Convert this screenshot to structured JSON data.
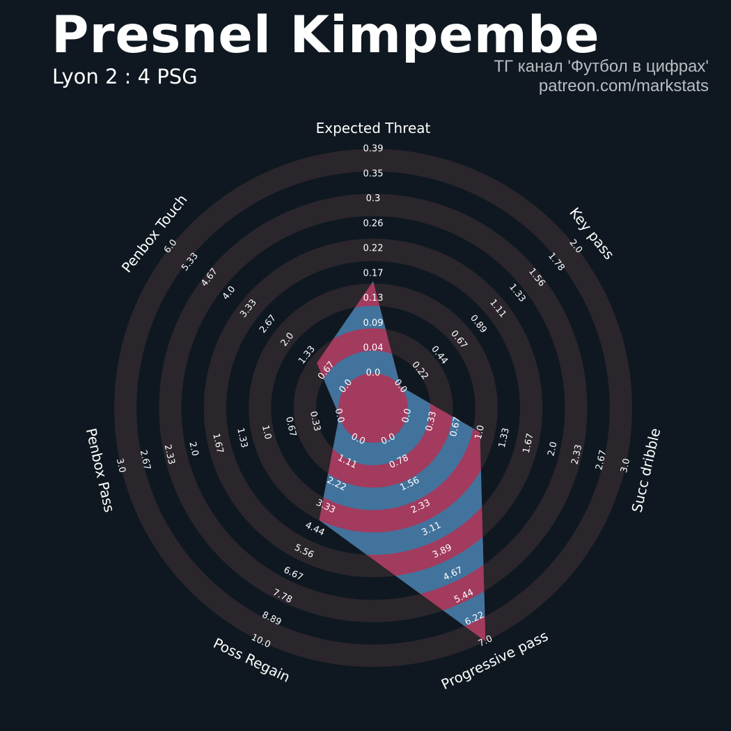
{
  "header": {
    "title": "Presnel Kimpembe",
    "subtitle": "Lyon 2 : 4 PSG",
    "credit_line1": "ТГ канал 'Футбол в цифрах'",
    "credit_line2": "patreon.com/markstats"
  },
  "colors": {
    "background": "#0f1820",
    "ring": "#2a262c",
    "fill_blue": "#42739c",
    "fill_pink": "#a23b5e",
    "text": "#ffffff",
    "credit": "#b9bdc2"
  },
  "chart_data": {
    "type": "radar",
    "rings": 5,
    "parameters": [
      {
        "label": "Expected Threat",
        "value": 0.16,
        "min": 0.0,
        "max": 0.39,
        "ticks": [
          "0.0",
          "0.04",
          "0.09",
          "0.13",
          "0.17",
          "0.22",
          "0.26",
          "0.3",
          "0.35",
          "0.39"
        ]
      },
      {
        "label": "Key pass",
        "value": 0.0,
        "min": 0.0,
        "max": 2.0,
        "ticks": [
          "0.0",
          "0.22",
          "0.44",
          "0.67",
          "0.89",
          "1.11",
          "1.33",
          "1.56",
          "1.78",
          "2.0"
        ]
      },
      {
        "label": "Succ dribble",
        "value": 1.0,
        "min": 0.0,
        "max": 3.0,
        "ticks": [
          "0.0",
          "0.33",
          "0.67",
          "1.0",
          "1.33",
          "1.67",
          "2.0",
          "2.33",
          "2.67",
          "3.0"
        ]
      },
      {
        "label": "Progressive pass",
        "value": 7.0,
        "min": 0.0,
        "max": 7.0,
        "ticks": [
          "0.0",
          "0.78",
          "1.56",
          "2.33",
          "3.11",
          "3.89",
          "4.67",
          "5.44",
          "6.22",
          "7.0"
        ]
      },
      {
        "label": "Poss Regain",
        "value": 4.0,
        "min": 0.0,
        "max": 10.0,
        "ticks": [
          "0.0",
          "1.11",
          "2.22",
          "3.33",
          "4.44",
          "5.56",
          "6.67",
          "7.78",
          "8.89",
          "10.0"
        ]
      },
      {
        "label": "Penbox Pass",
        "value": 0.0,
        "min": 0.0,
        "max": 3.0,
        "ticks": [
          "0.0",
          "0.33",
          "0.67",
          "1.0",
          "1.33",
          "1.67",
          "2.0",
          "2.33",
          "2.67",
          "3.0"
        ]
      },
      {
        "label": "Penbox Touch",
        "value": 1.0,
        "min": 0.0,
        "max": 6.0,
        "ticks": [
          "0.0",
          "0.67",
          "1.33",
          "2.0",
          "2.67",
          "3.33",
          "4.0",
          "4.67",
          "5.33",
          "6.0"
        ]
      }
    ]
  }
}
